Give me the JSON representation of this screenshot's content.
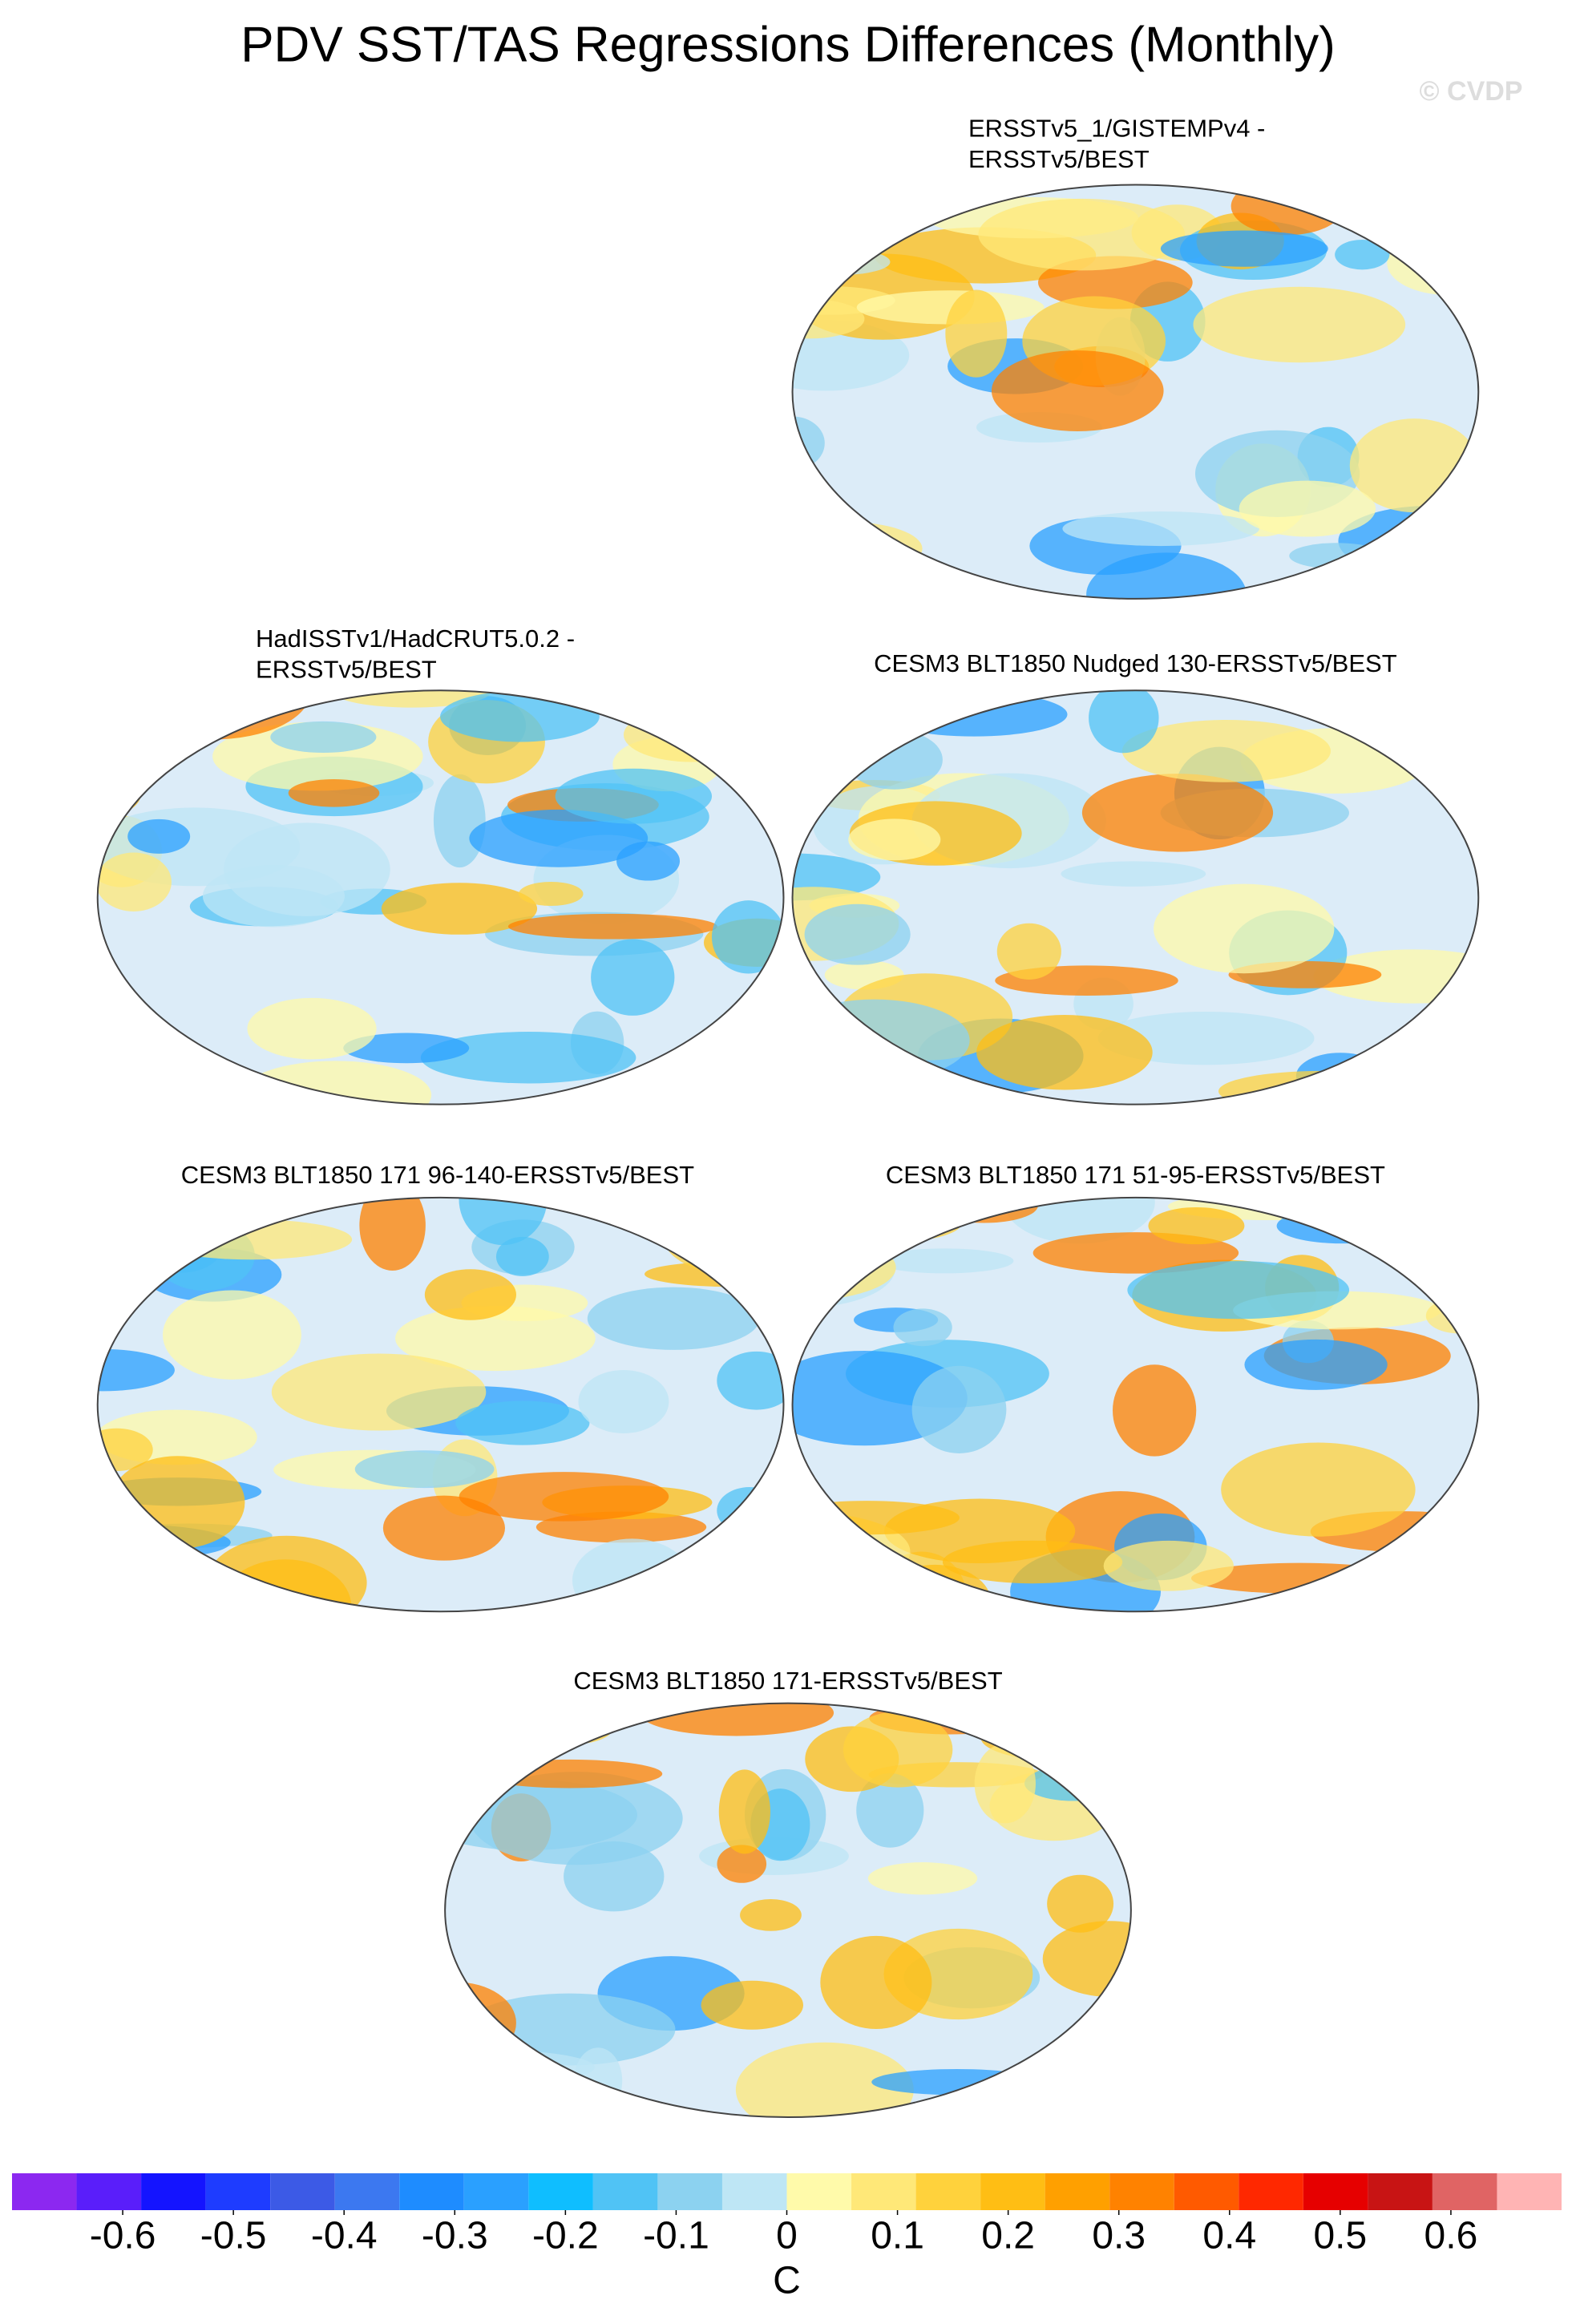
{
  "title": "PDV SST/TAS Regressions Differences (Monthly)",
  "watermark": "© CVDP",
  "panels": [
    {
      "title": [
        "ERSSTv5_1/GISTEMPv4 -",
        "ERSSTv5/BEST"
      ]
    },
    {
      "title": [
        "HadISSTv1/HadCRUT5.0.2 -",
        "ERSSTv5/BEST"
      ]
    },
    {
      "title": [
        "CESM3 BLT1850 Nudged 130-ERSSTv5/BEST"
      ]
    },
    {
      "title": [
        "CESM3 BLT1850 171 96-140-ERSSTv5/BEST"
      ]
    },
    {
      "title": [
        "CESM3 BLT1850 171 51-95-ERSSTv5/BEST"
      ]
    },
    {
      "title": [
        "CESM3 BLT1850 171-ERSSTv5/BEST"
      ]
    }
  ],
  "colorbar": {
    "colors": [
      "#8c28f0",
      "#5a1efa",
      "#1414ff",
      "#1e3cff",
      "#3c5ae6",
      "#3c78f0",
      "#1e8cff",
      "#2aa0ff",
      "#0fbeff",
      "#50c3f5",
      "#8cd2f0",
      "#bee6f5",
      "#fffaaa",
      "#ffe878",
      "#ffd23c",
      "#ffbe14",
      "#ffa000",
      "#ff8200",
      "#ff5a00",
      "#ff2800",
      "#e60000",
      "#c81414",
      "#e06464",
      "#ffb4b4"
    ],
    "xlim": [
      -0.7,
      0.7
    ],
    "ticks": [
      -0.6,
      -0.5,
      -0.4,
      -0.3,
      -0.2,
      -0.1,
      0,
      0.1,
      0.2,
      0.3,
      0.4,
      0.5,
      0.6
    ],
    "label": "C"
  }
}
